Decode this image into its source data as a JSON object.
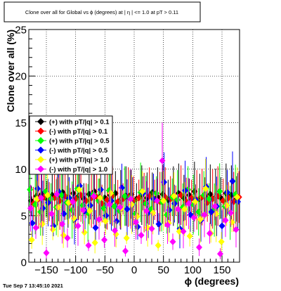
{
  "chart_data": {
    "type": "scatter",
    "title": "Clone  over all for Global vs ϕ (degrees) at |  η | <= 1.0 at pT > 0.11",
    "xlabel": "ϕ (degrees)",
    "ylabel": "Clone  over all (%)",
    "xlim": [
      -180,
      180
    ],
    "ylim": [
      0,
      25
    ],
    "x_ticks": [
      -150,
      -100,
      -50,
      0,
      50,
      100,
      150
    ],
    "y_ticks": [
      0,
      5,
      10,
      15,
      20,
      25
    ],
    "grid": true,
    "legend_position": "middle-left",
    "series": [
      {
        "name": "(+) with pT/|q| > 0.1",
        "color": "#000000",
        "x": [
          -176,
          -167,
          -158,
          -149,
          -140,
          -131,
          -122,
          -113,
          -104,
          -95,
          -86,
          -77,
          -68,
          -59,
          -50,
          -41,
          -32,
          -23,
          -14,
          -5,
          4,
          13,
          22,
          31,
          40,
          49,
          58,
          67,
          76,
          85,
          94,
          103,
          112,
          121,
          130,
          139,
          148,
          157,
          166,
          175
        ],
        "y": [
          6.6,
          7.1,
          7.3,
          6.8,
          7.2,
          7.0,
          7.5,
          6.9,
          7.4,
          7.1,
          6.8,
          7.3,
          7.6,
          7.0,
          6.9,
          7.2,
          7.4,
          6.7,
          7.1,
          7.3,
          6.8,
          7.2,
          6.9,
          7.5,
          7.0,
          7.3,
          6.7,
          7.1,
          7.4,
          6.9,
          7.2,
          7.6,
          6.8,
          7.1,
          7.3,
          7.0,
          6.9,
          7.4,
          7.2,
          6.8
        ]
      },
      {
        "name": "(-) with pT/|q| > 0.1",
        "color": "#ff0000",
        "x": [
          -172,
          -163,
          -154,
          -145,
          -136,
          -127,
          -118,
          -109,
          -100,
          -91,
          -82,
          -73,
          -64,
          -55,
          -46,
          -37,
          -28,
          -19,
          -10,
          -1,
          8,
          17,
          26,
          35,
          44,
          53,
          62,
          71,
          80,
          89,
          98,
          107,
          116,
          125,
          134,
          143,
          152,
          161,
          170,
          179
        ],
        "y": [
          6.3,
          6.8,
          7.0,
          6.5,
          6.9,
          6.6,
          7.1,
          6.4,
          6.8,
          7.2,
          6.6,
          6.9,
          7.0,
          6.3,
          6.7,
          7.1,
          6.5,
          6.8,
          7.0,
          6.6,
          6.9,
          6.4,
          7.1,
          6.7,
          6.5,
          7.0,
          6.8,
          6.6,
          7.2,
          6.5,
          6.9,
          6.7,
          7.0,
          6.4,
          6.8,
          7.1,
          6.6,
          6.9,
          6.5,
          7.0
        ]
      },
      {
        "name": "(+) with pT/|q| > 0.5",
        "color": "#00ff00",
        "x": [
          -178,
          -169,
          -160,
          -151,
          -142,
          -133,
          -124,
          -115,
          -106,
          -97,
          -88,
          -79,
          -70,
          -61,
          -52,
          -43,
          -34,
          -25,
          -16,
          -7,
          2,
          11,
          20,
          29,
          38,
          47,
          56,
          65,
          74,
          83,
          92,
          101,
          110,
          119,
          128,
          137,
          146,
          155,
          164,
          173
        ],
        "y": [
          7.8,
          6.2,
          5.4,
          7.6,
          6.8,
          5.9,
          7.2,
          6.4,
          5.6,
          7.9,
          6.1,
          5.3,
          7.3,
          6.6,
          5.8,
          7.7,
          6.0,
          5.5,
          7.1,
          6.9,
          5.2,
          7.5,
          6.3,
          5.7,
          7.4,
          6.5,
          5.1,
          7.0,
          6.7,
          5.9,
          7.8,
          6.2,
          5.4,
          7.2,
          6.8,
          5.6,
          7.6,
          6.0,
          5.3,
          7.3
        ]
      },
      {
        "name": "(-) with pT/|q| > 0.5",
        "color": "#0000ff",
        "x": [
          -174,
          -165,
          -156,
          -147,
          -138,
          -129,
          -120,
          -111,
          -102,
          -93,
          -84,
          -75,
          -66,
          -57,
          -48,
          -39,
          -30,
          -21,
          -12,
          -3,
          6,
          15,
          24,
          33,
          42,
          51,
          60,
          69,
          78,
          87,
          96,
          105,
          114,
          123,
          132,
          141,
          150,
          159,
          168,
          177
        ],
        "y": [
          4.2,
          7.9,
          5.8,
          6.4,
          3.9,
          7.6,
          5.2,
          6.9,
          4.6,
          8.2,
          5.5,
          6.1,
          3.7,
          7.8,
          5.0,
          6.6,
          4.4,
          8.0,
          5.7,
          6.2,
          3.8,
          7.4,
          5.3,
          6.8,
          4.1,
          8.6,
          5.6,
          6.3,
          3.6,
          7.7,
          5.1,
          6.7,
          4.5,
          8.1,
          5.4,
          6.0,
          3.9,
          7.5,
          8.7,
          6.5
        ]
      },
      {
        "name": "(+) with pT/|q| > 1.0",
        "color": "#ffff00",
        "x": [
          -175,
          -166,
          -157,
          -148,
          -139,
          -130,
          -121,
          -112,
          -103,
          -94,
          -85,
          -76,
          -67,
          -58,
          -49,
          -40,
          -31,
          -22,
          -13,
          -4,
          5,
          14,
          23,
          32,
          41,
          50,
          59,
          68,
          77,
          86,
          95,
          104,
          113,
          122,
          131,
          140,
          149,
          158,
          167,
          176
        ],
        "y": [
          2.4,
          6.8,
          4.1,
          7.2,
          3.5,
          5.9,
          2.9,
          6.4,
          4.7,
          7.8,
          3.2,
          5.5,
          2.1,
          6.9,
          4.4,
          7.4,
          3.0,
          5.8,
          2.6,
          6.2,
          4.9,
          7.6,
          3.7,
          5.3,
          1.8,
          6.6,
          4.2,
          7.1,
          3.3,
          5.7,
          2.8,
          6.5,
          4.6,
          7.9,
          3.1,
          5.2,
          2.2,
          6.1,
          4.3,
          7.0
        ]
      },
      {
        "name": "(-) with pT/|q| > 1.0",
        "color": "#ff00ff",
        "x": [
          -177,
          -168,
          -159,
          -150,
          -141,
          -132,
          -123,
          -114,
          -105,
          -96,
          -87,
          -78,
          -69,
          -60,
          -51,
          -42,
          -33,
          -24,
          -15,
          -6,
          3,
          12,
          21,
          30,
          39,
          48,
          57,
          66,
          75,
          84,
          93,
          102,
          111,
          120,
          129,
          138,
          147,
          156,
          165,
          174
        ],
        "y": [
          5.8,
          3.7,
          6.9,
          1.0,
          5.2,
          7.3,
          4.1,
          2.6,
          6.5,
          3.9,
          5.6,
          1.8,
          7.1,
          4.6,
          2.4,
          6.2,
          3.4,
          5.9,
          1.2,
          6.8,
          4.3,
          2.9,
          5.5,
          3.6,
          6.6,
          10.9,
          4.0,
          2.2,
          5.7,
          3.3,
          6.3,
          4.8,
          1.6,
          5.1,
          3.1,
          6.0,
          0.9,
          4.5,
          5.3,
          3.5
        ]
      }
    ]
  },
  "footer": {
    "timestamp": "Tue Sep  7 13:45:10 2021"
  }
}
